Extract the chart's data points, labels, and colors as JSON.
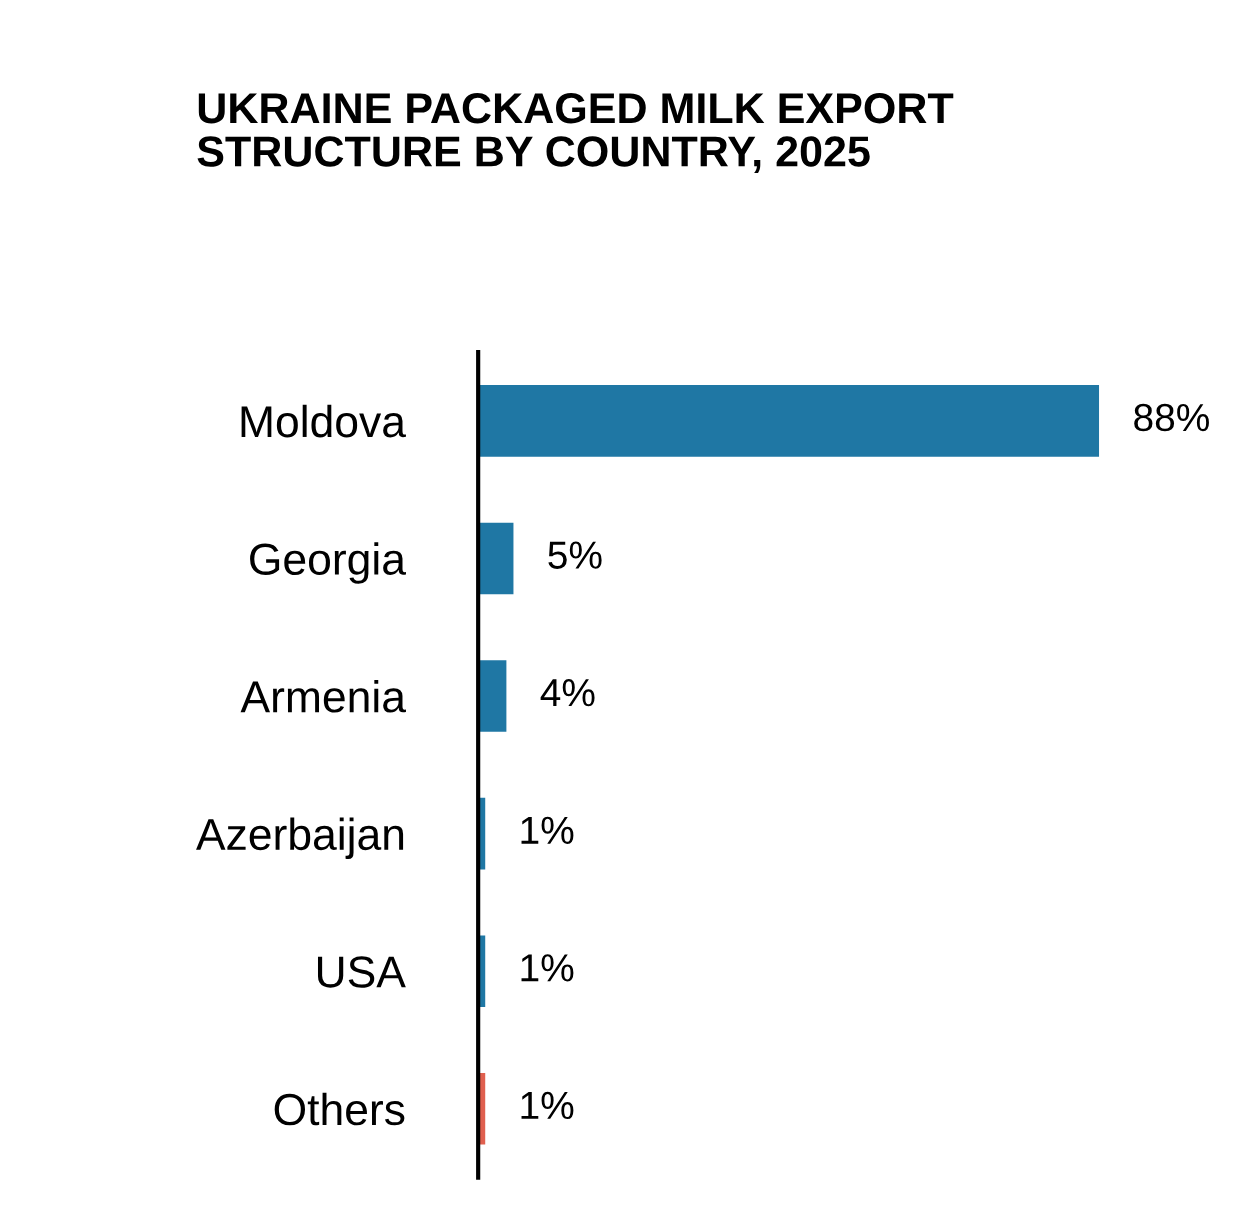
{
  "chart_data": {
    "type": "bar",
    "orientation": "horizontal",
    "title": "UKRAINE PACKAGED MILK EXPORT\nSTRUCTURE BY COUNTRY, 2025",
    "categories": [
      "Moldova",
      "Georgia",
      "Armenia",
      "Azerbaijan",
      "USA",
      "Others"
    ],
    "values": [
      88,
      5,
      4,
      1,
      1,
      1
    ],
    "colors": [
      "#1f77a4",
      "#1f77a4",
      "#1f77a4",
      "#1f77a4",
      "#1f77a4",
      "#e0604f"
    ],
    "value_labels": [
      "88%",
      "5%",
      "4%",
      "1%",
      "1%",
      "1%"
    ],
    "grid": false,
    "legend": false
  }
}
